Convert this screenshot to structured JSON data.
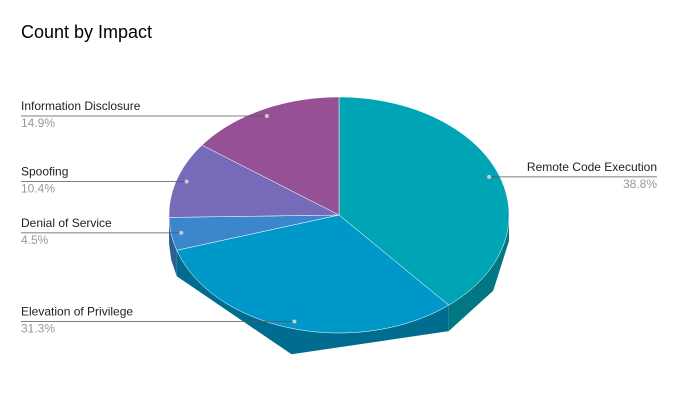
{
  "chart_data": {
    "type": "pie",
    "title": "Count by Impact",
    "categories": [
      "Remote Code Execution",
      "Elevation of Privilege",
      "Denial of Service",
      "Spoofing",
      "Information Disclosure"
    ],
    "values": [
      38.8,
      31.3,
      4.5,
      10.4,
      14.9
    ],
    "value_labels": [
      "38.8%",
      "31.3%",
      "4.5%",
      "10.4%",
      "14.9%"
    ],
    "colors": [
      "#00a5b5",
      "#0098c8",
      "#3c86cc",
      "#766bb8",
      "#955096"
    ]
  }
}
